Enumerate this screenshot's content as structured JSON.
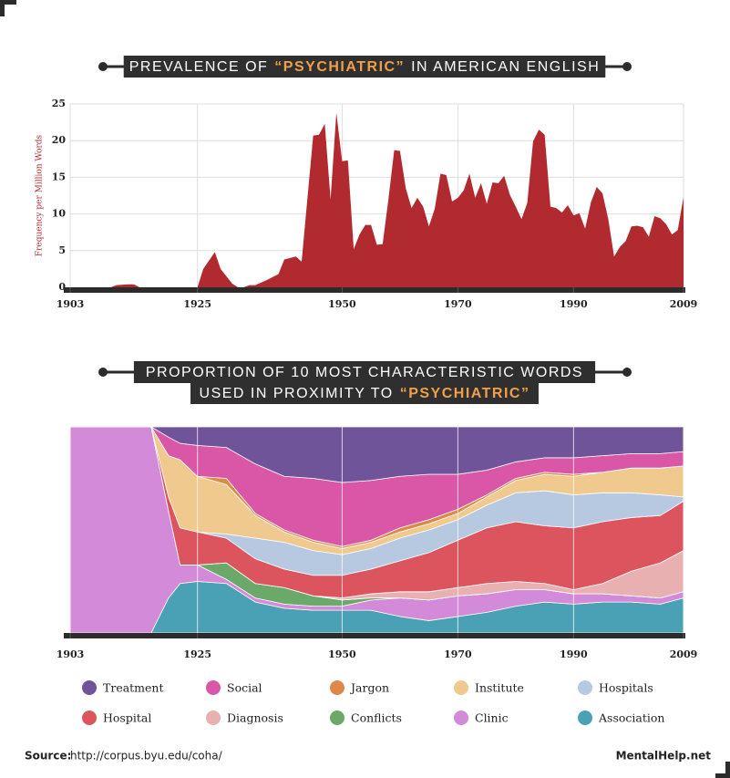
{
  "chart_data": [
    {
      "type": "area",
      "title": [
        [
          {
            "text": "PREVALENCE OF",
            "color": "#ffffff"
          },
          {
            "text": "“PSYCHIATRIC”",
            "color": "#f0a04b"
          },
          {
            "text": "IN AMERICAN ENGLISH",
            "color": "#ffffff"
          }
        ]
      ],
      "y_label": "Frequency per Million Words",
      "color": "#b02a30",
      "x": [
        1903,
        1910,
        1911,
        1913,
        1914,
        1915,
        1925,
        1926,
        1928,
        1929,
        1931,
        1932,
        1933,
        1934,
        1935,
        1937,
        1939,
        1940,
        1942,
        1943,
        1945,
        1946,
        1947,
        1948,
        1949,
        1950,
        1951,
        1952,
        1953,
        1954,
        1955,
        1956,
        1957,
        1958,
        1959,
        1960,
        1961,
        1962,
        1963,
        1964,
        1965,
        1966,
        1967,
        1968,
        1969,
        1970,
        1971,
        1972,
        1973,
        1974,
        1975,
        1976,
        1977,
        1978,
        1979,
        1980,
        1981,
        1982,
        1983,
        1984,
        1985,
        1986,
        1987,
        1988,
        1989,
        1990,
        1991,
        1992,
        1993,
        1994,
        1995,
        1996,
        1997,
        1998,
        1999,
        2000,
        2001,
        2002,
        2003,
        2004,
        2005,
        2006,
        2007,
        2008,
        2009
      ],
      "values": [
        0,
        0,
        0.3,
        0.4,
        0.4,
        0,
        0,
        2.5,
        4.8,
        2.5,
        0.5,
        0,
        0,
        0.3,
        0.3,
        1,
        1.8,
        3.8,
        4.2,
        3.5,
        20.7,
        20.8,
        22.3,
        12,
        23.8,
        17.2,
        17.3,
        5.2,
        7.2,
        8.5,
        8.5,
        5.8,
        5.9,
        12,
        18.7,
        18.6,
        13.5,
        10.8,
        12.2,
        11,
        8.3,
        10.7,
        15.5,
        15.3,
        11.7,
        12.2,
        13.2,
        15.5,
        12.2,
        14.2,
        11.4,
        14.3,
        14.2,
        15.2,
        12.6,
        11,
        9.3,
        11.5,
        19.9,
        21.5,
        20.8,
        11,
        10.8,
        10.2,
        11.2,
        9.8,
        10.1,
        8,
        11.6,
        13.7,
        12.8,
        9.3,
        4.2,
        5.5,
        6.3,
        8.3,
        8.4,
        8.2,
        6.9,
        9.7,
        9.4,
        8.6,
        7.2,
        7.8,
        12.3
      ],
      "xlim": [
        1903,
        2009
      ],
      "xticks": [
        1903,
        1925,
        1950,
        1970,
        1990,
        2009
      ],
      "ylim": [
        0,
        25
      ],
      "yticks": [
        0,
        5,
        10,
        15,
        20,
        25
      ],
      "grid": true
    },
    {
      "type": "stacked_area",
      "title": [
        [
          {
            "text": "PROPORTION OF 10 MOST CHARACTERISTIC WORDS",
            "color": "#ffffff"
          }
        ],
        [
          {
            "text": "USED IN PROXIMITY TO",
            "color": "#ffffff"
          },
          {
            "text": "“PSYCHIATRIC”",
            "color": "#f0a04b"
          }
        ]
      ],
      "x": [
        1903,
        1917,
        1920,
        1922,
        1925,
        1930,
        1935,
        1940,
        1945,
        1950,
        1955,
        1960,
        1965,
        1970,
        1975,
        1980,
        1985,
        1990,
        1995,
        2000,
        2005,
        2009
      ],
      "series": [
        {
          "name": "Treatment",
          "color": "#705499",
          "values": [
            0,
            0,
            5,
            8,
            9,
            10,
            18,
            24,
            25,
            27,
            26,
            24,
            23,
            23,
            21,
            17,
            15,
            15,
            14,
            13,
            13,
            12
          ]
        },
        {
          "name": "Social",
          "color": "#d957a6",
          "values": [
            0,
            0,
            9,
            8,
            15,
            15,
            24,
            26,
            30,
            31,
            29,
            25,
            22,
            17,
            12,
            8,
            7,
            8,
            8,
            7,
            7,
            7
          ]
        },
        {
          "name": "Jargon",
          "color": "#dd8a49",
          "values": [
            0,
            0,
            0,
            0,
            0,
            3,
            1,
            1,
            1,
            1,
            1,
            2,
            2,
            2,
            1,
            1,
            1,
            1,
            0,
            0,
            0,
            0
          ]
        },
        {
          "name": "Institute",
          "color": "#efc98d",
          "values": [
            0,
            0,
            20,
            33,
            27,
            24,
            11,
            5,
            4,
            3,
            3,
            3,
            3,
            3,
            4,
            6,
            8,
            9,
            10,
            12,
            13,
            15
          ]
        },
        {
          "name": "Hospitals",
          "color": "#b7c8e1",
          "values": [
            0,
            0,
            0,
            0,
            0,
            2,
            10,
            13,
            12,
            10,
            10,
            11,
            11,
            10,
            11,
            14,
            17,
            16,
            14,
            12,
            10,
            2
          ]
        },
        {
          "name": "Hospital",
          "color": "#dc555e",
          "values": [
            0,
            0,
            7,
            18,
            16,
            12,
            12,
            9,
            10,
            11,
            12,
            15,
            19,
            23,
            27,
            29,
            28,
            30,
            30,
            26,
            23,
            24
          ]
        },
        {
          "name": "Diagnosis",
          "color": "#e9b0b2",
          "values": [
            0,
            0,
            0,
            0,
            0,
            0,
            0,
            0,
            0,
            1,
            2,
            3,
            4,
            4,
            5,
            4,
            3,
            2,
            5,
            12,
            17,
            20
          ]
        },
        {
          "name": "Conflicts",
          "color": "#6aa96a",
          "values": [
            0,
            0,
            0,
            0,
            0,
            8,
            7,
            8,
            5,
            3,
            1,
            0,
            0,
            0,
            0,
            0,
            0,
            0,
            0,
            0,
            0,
            0
          ]
        },
        {
          "name": "Clinic",
          "color": "#d38ad8",
          "values": [
            100,
            100,
            42,
            9,
            8,
            2,
            2,
            2,
            2,
            2,
            5,
            9,
            10,
            10,
            9,
            8,
            6,
            5,
            4,
            3,
            3,
            3
          ]
        },
        {
          "name": "Association",
          "color": "#4aa1b5",
          "values": [
            0,
            0,
            17,
            24,
            25,
            24,
            15,
            12,
            11,
            11,
            11,
            8,
            6,
            8,
            10,
            13,
            15,
            14,
            15,
            15,
            14,
            17
          ]
        }
      ],
      "xlim": [
        1903,
        2009
      ],
      "xticks": [
        1903,
        1925,
        1950,
        1970,
        1990,
        2009
      ],
      "ylim": [
        0,
        100
      ],
      "grid": true
    }
  ],
  "footer": {
    "source_label": "Source:",
    "source_url": "http://corpus.byu.edu/coha/",
    "brand": "MentalHelp.net"
  }
}
